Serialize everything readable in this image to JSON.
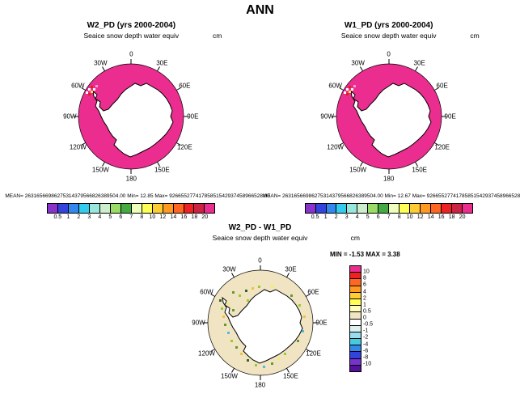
{
  "page_title": "ANN",
  "map_labels": [
    "0",
    "30W",
    "30E",
    "60W",
    "60E",
    "90W",
    "90E",
    "120W",
    "120E",
    "150W",
    "150E",
    "180"
  ],
  "colors": {
    "field": "#ea2d8e",
    "diff_background": "#f0e4c2",
    "continent": "#ffffff",
    "coastline": "#000000"
  },
  "panels": {
    "w2": {
      "title": "W2_PD (yrs 2000-2004)",
      "subtitle": "Seaice snow depth water equiv",
      "units": "cm",
      "stats": "MEAN= 26316566986275314379566826389504.00  Min= 12.85  Max= 92665527741785851542937458966528.00",
      "colorbar": {
        "labels": [
          "0.5",
          "1",
          "2",
          "3",
          "4",
          "5",
          "6",
          "7",
          "8",
          "10",
          "12",
          "14",
          "16",
          "18",
          "20"
        ],
        "colors": [
          "#8833cc",
          "#3344dd",
          "#3388ee",
          "#33ccee",
          "#99e6dd",
          "#cceecc",
          "#99dd66",
          "#44aa44",
          "#eeffbb",
          "#ffff55",
          "#ffcc33",
          "#ff9922",
          "#ff6622",
          "#ee2222",
          "#cc2244",
          "#ea2d8e"
        ]
      }
    },
    "w1": {
      "title": "W1_PD (yrs 2000-2004)",
      "subtitle": "Seaice snow depth water equiv",
      "units": "cm",
      "stats": "MEAN= 26316566986275314379566826389504.00  Min= 12.67  Max= 92665527741785851542937458966528.00",
      "colorbar": {
        "labels": [
          "0.5",
          "1",
          "2",
          "3",
          "4",
          "5",
          "6",
          "7",
          "8",
          "10",
          "12",
          "14",
          "16",
          "18",
          "20"
        ],
        "colors": [
          "#8833cc",
          "#3344dd",
          "#3388ee",
          "#33ccee",
          "#99e6dd",
          "#cceecc",
          "#99dd66",
          "#44aa44",
          "#eeffbb",
          "#ffff55",
          "#ffcc33",
          "#ff9922",
          "#ff6622",
          "#ee2222",
          "#cc2244",
          "#ea2d8e"
        ]
      }
    },
    "diff": {
      "title": "W2_PD - W1_PD",
      "subtitle": "Seaice snow depth water equiv",
      "units": "cm",
      "minmax": "MIN = -1.53 MAX =  3.38",
      "colorbar": {
        "labels": [
          "10",
          "8",
          "6",
          "4",
          "2",
          "1",
          "0.5",
          "0",
          "-0.5",
          "-1",
          "-2",
          "-4",
          "-6",
          "-8",
          "-10"
        ],
        "colors": [
          "#ea2d8e",
          "#ee2222",
          "#ff6622",
          "#ff9922",
          "#ffcc33",
          "#ffff55",
          "#ffffbb",
          "#f0e4c2",
          "#ffffff",
          "#ddf0ee",
          "#99ddee",
          "#44ccdd",
          "#3388ee",
          "#3344dd",
          "#7733cc",
          "#551199"
        ]
      }
    }
  },
  "chart_data": [
    {
      "type": "heatmap",
      "projection": "south_polar_stereographic",
      "season": "ANN",
      "title": "W2_PD (yrs 2000-2004)",
      "variable": "Seaice snow depth water equiv",
      "units": "cm",
      "levels": [
        0.5,
        1,
        2,
        3,
        4,
        5,
        6,
        7,
        8,
        10,
        12,
        14,
        16,
        18,
        20
      ],
      "min": 12.85,
      "max": 9.266552774178585e+31,
      "mean": 2.6316566986275314e+31,
      "lon_ticks_deg": [
        0,
        30,
        60,
        90,
        120,
        150,
        180,
        210,
        240,
        270,
        300,
        330
      ],
      "note": "Entire sea-ice field saturated at top color (> 20 cm); Antarctica continent blank; scattered mixed-value cells near Antarctic Peninsula (~60W)."
    },
    {
      "type": "heatmap",
      "projection": "south_polar_stereographic",
      "season": "ANN",
      "title": "W1_PD (yrs 2000-2004)",
      "variable": "Seaice snow depth water equiv",
      "units": "cm",
      "levels": [
        0.5,
        1,
        2,
        3,
        4,
        5,
        6,
        7,
        8,
        10,
        12,
        14,
        16,
        18,
        20
      ],
      "min": 12.67,
      "max": 9.266552774178585e+31,
      "mean": 2.6316566986275314e+31,
      "lon_ticks_deg": [
        0,
        30,
        60,
        90,
        120,
        150,
        180,
        210,
        240,
        270,
        300,
        330
      ],
      "note": "Same saturated pattern as W2_PD."
    },
    {
      "type": "heatmap",
      "projection": "south_polar_stereographic",
      "season": "ANN",
      "title": "W2_PD - W1_PD",
      "variable": "Seaice snow depth water equiv",
      "units": "cm",
      "levels": [
        -10,
        -8,
        -6,
        -4,
        -2,
        -1,
        -0.5,
        0,
        0.5,
        1,
        2,
        4,
        6,
        8,
        10
      ],
      "min": -1.53,
      "max": 3.38,
      "lon_ticks_deg": [
        0,
        30,
        60,
        90,
        120,
        150,
        180,
        210,
        240,
        270,
        300,
        330
      ],
      "note": "Differences mostly within 0 to 0.5 cm (tan field); scattered green/yellow/cyan cells of roughly -2 to +3 cm along the coast, Weddell and Ross sectors."
    }
  ]
}
